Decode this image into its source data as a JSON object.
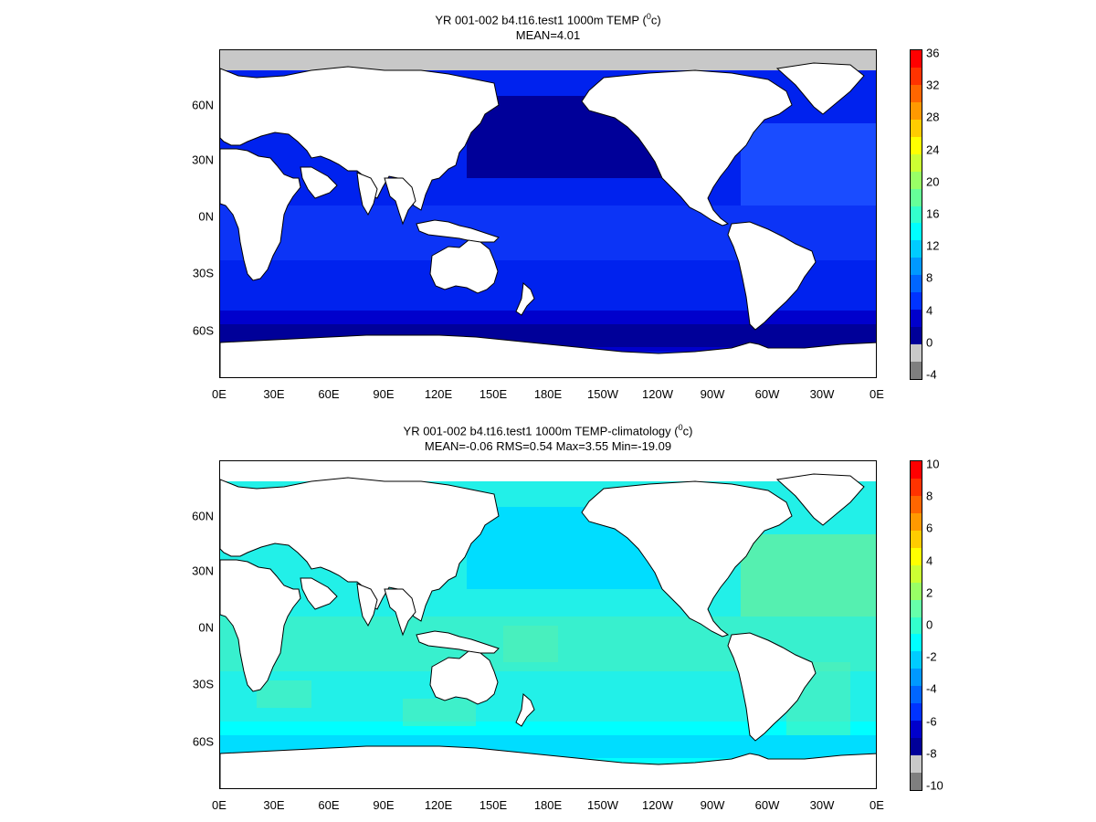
{
  "panels": [
    {
      "title_line1": "YR 001-002 b4.t16.test1 1000m TEMP (",
      "title_sup": "0",
      "title_tail": "c)",
      "title_line2": "MEAN=4.01",
      "lon_labels": [
        "0E",
        "30E",
        "60E",
        "90E",
        "120E",
        "150E",
        "180E",
        "150W",
        "120W",
        "90W",
        "60W",
        "30W",
        "0E"
      ],
      "lat_labels": [
        "60N",
        "30N",
        "0N",
        "30S",
        "60S"
      ],
      "colorbar_labels": [
        "36",
        "32",
        "28",
        "24",
        "20",
        "16",
        "12",
        "8",
        "4",
        "0",
        "-4"
      ],
      "colorbar_colors": [
        "#ff0000",
        "#ff3300",
        "#ff6600",
        "#ff9900",
        "#ffcc00",
        "#ffff00",
        "#ccff33",
        "#99ff66",
        "#66ff99",
        "#33ffcc",
        "#00ffff",
        "#00ccff",
        "#0099ff",
        "#0066ff",
        "#0033ff",
        "#0000cc",
        "#000099",
        "#c8c8c8",
        "#7f7f7f"
      ],
      "ocean_colors": {
        "deep": "#000099",
        "mid": "#0000cc",
        "main": "#0022ee",
        "light": "#1a4cff",
        "ice": "#c8c8c8"
      }
    },
    {
      "title_line1": "YR 001-002 b4.t16.test1 1000m TEMP-climatology (",
      "title_sup": "0",
      "title_tail": "c)",
      "title_line2": "MEAN=-0.06   RMS=0.54   Max=3.55   Min=-19.09",
      "lon_labels": [
        "0E",
        "30E",
        "60E",
        "90E",
        "120E",
        "150E",
        "180E",
        "150W",
        "120W",
        "90W",
        "60W",
        "30W",
        "0E"
      ],
      "lat_labels": [
        "60N",
        "30N",
        "0N",
        "30S",
        "60S"
      ],
      "colorbar_labels": [
        "10",
        "8",
        "6",
        "4",
        "2",
        "0",
        "-2",
        "-4",
        "-6",
        "-8",
        "-10"
      ],
      "colorbar_colors": [
        "#ff0000",
        "#ff3300",
        "#ff6600",
        "#ff9900",
        "#ffcc00",
        "#ffff00",
        "#ccff33",
        "#99ff66",
        "#66ffaa",
        "#33ffcc",
        "#00ffff",
        "#00ccff",
        "#0099ff",
        "#0066ff",
        "#0033ff",
        "#0000cc",
        "#000099",
        "#c8c8c8",
        "#7f7f7f"
      ],
      "ocean_colors": {
        "deep": "#00ddff",
        "mid": "#00ffff",
        "main": "#22f0e8",
        "light": "#55f0b0",
        "ice": "#ffffff"
      }
    }
  ]
}
